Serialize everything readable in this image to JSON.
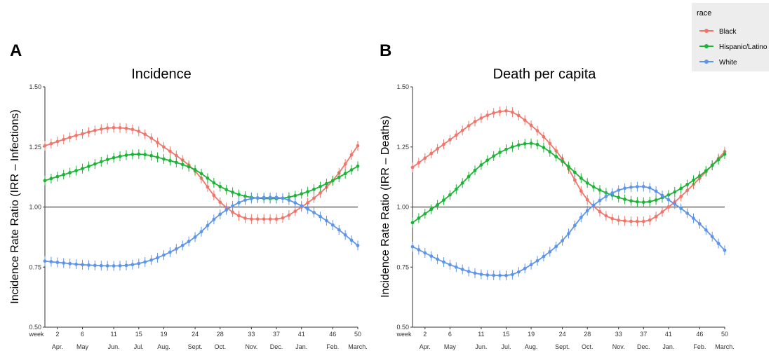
{
  "legend": {
    "title": "race",
    "entries": [
      "Black",
      "Hispanic/Latino",
      "White"
    ]
  },
  "colors": {
    "Black": "#f0766c",
    "Hispanic/Latino": "#1db337",
    "White": "#5f95e8",
    "reference": "#444444"
  },
  "chart_data": [
    {
      "type": "line",
      "panel_letter": "A",
      "title": "Incidence",
      "ylabel": "Incidence Rate Ratio (IRR – Infections)",
      "xlabel": "",
      "ylim": [
        0.5,
        1.5
      ],
      "yticks": [
        "0.50",
        "0.75",
        "1.00",
        "1.25",
        "1.50"
      ],
      "xlim": [
        0,
        50
      ],
      "week_label": "week",
      "week_ticks": [
        2,
        6,
        11,
        15,
        19,
        24,
        28,
        33,
        37,
        41,
        46,
        50
      ],
      "month_ticks": [
        "Apr.",
        "May",
        "Jun.",
        "Jul.",
        "Aug.",
        "Sept.",
        "Oct.",
        "Nov.",
        "Dec.",
        "Jan.",
        "Feb.",
        "March."
      ],
      "reference_line": 1.0,
      "series": [
        {
          "name": "Black",
          "x": [
            0,
            6,
            11,
            15,
            19,
            24,
            28,
            33,
            37,
            41,
            46,
            50
          ],
          "values": [
            1.255,
            1.305,
            1.33,
            1.315,
            1.25,
            1.15,
            1.02,
            0.95,
            0.95,
            1.0,
            1.11,
            1.255
          ]
        },
        {
          "name": "Hispanic/Latino",
          "x": [
            0,
            6,
            11,
            15,
            19,
            24,
            28,
            33,
            37,
            41,
            46,
            50
          ],
          "values": [
            1.11,
            1.16,
            1.205,
            1.22,
            1.2,
            1.155,
            1.085,
            1.04,
            1.035,
            1.055,
            1.11,
            1.17
          ]
        },
        {
          "name": "White",
          "x": [
            0,
            6,
            11,
            15,
            19,
            24,
            28,
            33,
            37,
            41,
            46,
            50
          ],
          "values": [
            0.775,
            0.76,
            0.755,
            0.765,
            0.8,
            0.875,
            0.97,
            1.035,
            1.04,
            1.005,
            0.925,
            0.84
          ]
        }
      ]
    },
    {
      "type": "line",
      "panel_letter": "B",
      "title": "Death per capita",
      "ylabel": "Incidence Rate Ratio (IRR – Deaths)",
      "xlabel": "",
      "ylim": [
        0.5,
        1.5
      ],
      "yticks": [
        "0.50",
        "0.75",
        "1.00",
        "1.25",
        "1.50"
      ],
      "xlim": [
        0,
        50
      ],
      "week_label": "week",
      "week_ticks": [
        2,
        6,
        11,
        15,
        19,
        24,
        28,
        33,
        37,
        41,
        46,
        50
      ],
      "month_ticks": [
        "Apr.",
        "May",
        "Jun.",
        "Jul.",
        "Aug.",
        "Sept.",
        "Oct.",
        "Nov.",
        "Dec.",
        "Jan.",
        "Feb.",
        "March."
      ],
      "reference_line": 1.0,
      "series": [
        {
          "name": "Black",
          "x": [
            0,
            6,
            11,
            15,
            19,
            24,
            28,
            33,
            37,
            41,
            46,
            50
          ],
          "values": [
            1.165,
            1.28,
            1.37,
            1.4,
            1.34,
            1.2,
            1.03,
            0.945,
            0.94,
            1.0,
            1.12,
            1.23
          ]
        },
        {
          "name": "Hispanic/Latino",
          "x": [
            0,
            6,
            11,
            15,
            19,
            24,
            28,
            33,
            37,
            41,
            46,
            50
          ],
          "values": [
            0.935,
            1.05,
            1.175,
            1.24,
            1.265,
            1.19,
            1.1,
            1.04,
            1.02,
            1.05,
            1.13,
            1.22
          ]
        },
        {
          "name": "White",
          "x": [
            0,
            6,
            11,
            15,
            19,
            24,
            28,
            33,
            37,
            41,
            46,
            50
          ],
          "values": [
            0.835,
            0.76,
            0.72,
            0.715,
            0.76,
            0.86,
            0.985,
            1.07,
            1.085,
            1.03,
            0.93,
            0.82
          ]
        }
      ]
    }
  ]
}
